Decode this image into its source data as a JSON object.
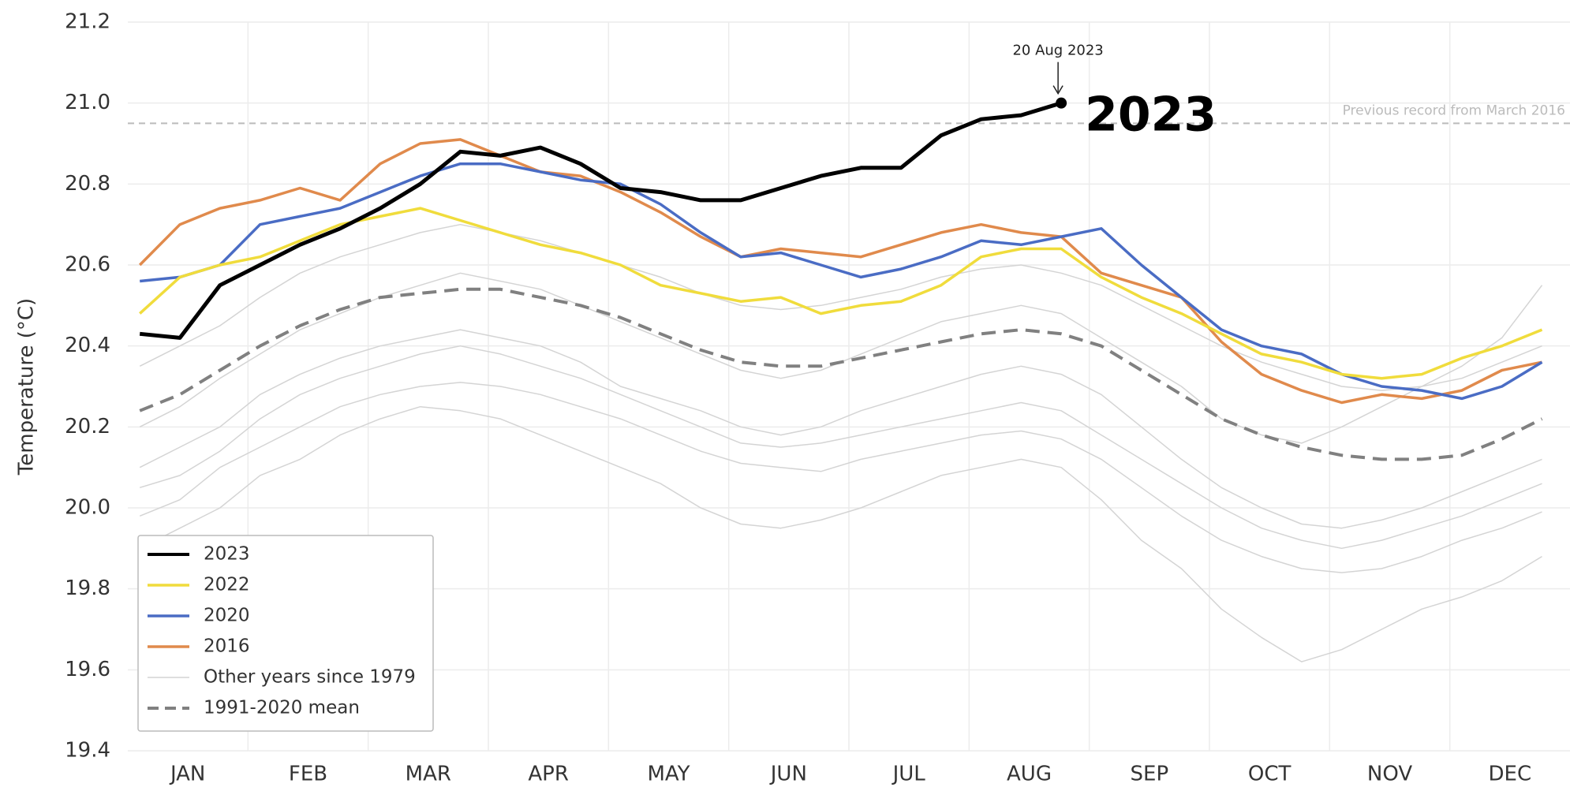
{
  "chart_data": {
    "type": "line",
    "y_label": "Temperature (°C)",
    "annotation": "20 Aug 2023",
    "record": {
      "value": 20.95,
      "label": "Previous record from March 2016"
    },
    "categories": [
      null,
      "JAN",
      null,
      null,
      "FEB",
      null,
      null,
      "MAR",
      null,
      null,
      "APR",
      null,
      null,
      "MAY",
      null,
      null,
      "JUN",
      null,
      null,
      "JUL",
      null,
      null,
      "AUG",
      null,
      null,
      "SEP",
      null,
      null,
      "OCT",
      null,
      null,
      "NOV",
      null,
      null,
      "DEC",
      null
    ],
    "ylim": [
      19.4,
      21.2
    ],
    "yticks": [
      19.4,
      19.6,
      19.8,
      {
        "value": 20,
        "label": "20.0"
      },
      20.2,
      20.4,
      20.6,
      20.8,
      {
        "value": 21,
        "label": "21.0"
      },
      21.2
    ],
    "grid": true,
    "legend": "lower left",
    "series": [
      {
        "name": "2023",
        "color": "#000000",
        "width": 5,
        "values": [
          20.43,
          20.42,
          20.55,
          20.6,
          20.65,
          20.69,
          20.74,
          20.8,
          20.88,
          20.87,
          20.89,
          20.85,
          20.79,
          20.78,
          20.76,
          20.76,
          20.79,
          20.82,
          20.84,
          20.84,
          20.92,
          20.96,
          20.97,
          21.0,
          null,
          null,
          null,
          null,
          null,
          null,
          null,
          null,
          null,
          null,
          null,
          null
        ]
      },
      {
        "name": "2022",
        "color": "#f0dc3c",
        "width": 3.5,
        "values": [
          20.48,
          20.57,
          20.6,
          20.62,
          20.66,
          20.7,
          20.72,
          20.74,
          20.71,
          20.68,
          20.65,
          20.63,
          20.6,
          20.55,
          20.53,
          20.51,
          20.52,
          20.48,
          20.5,
          20.51,
          20.55,
          20.62,
          20.64,
          20.64,
          20.57,
          20.52,
          20.48,
          20.43,
          20.38,
          20.36,
          20.33,
          20.32,
          20.33,
          20.37,
          20.4,
          20.44
        ]
      },
      {
        "name": "2020",
        "color": "#4a6cc4",
        "width": 3.5,
        "values": [
          20.56,
          20.57,
          20.6,
          20.7,
          20.72,
          20.74,
          20.78,
          20.82,
          20.85,
          20.85,
          20.83,
          20.81,
          20.8,
          20.75,
          20.68,
          20.62,
          20.63,
          20.6,
          20.57,
          20.59,
          20.62,
          20.66,
          20.65,
          20.67,
          20.69,
          20.6,
          20.52,
          20.44,
          20.4,
          20.38,
          20.33,
          20.3,
          20.29,
          20.27,
          20.3,
          20.36
        ]
      },
      {
        "name": "2016",
        "color": "#e08a4c",
        "width": 3.5,
        "values": [
          20.6,
          20.7,
          20.74,
          20.76,
          20.79,
          20.76,
          20.85,
          20.9,
          20.91,
          20.87,
          20.83,
          20.82,
          20.78,
          20.73,
          20.67,
          20.62,
          20.64,
          20.63,
          20.62,
          20.65,
          20.68,
          20.7,
          20.68,
          20.67,
          20.58,
          20.55,
          20.52,
          20.41,
          20.33,
          20.29,
          20.26,
          20.28,
          20.27,
          20.29,
          20.34,
          20.36
        ]
      },
      {
        "name": "Other years since 1979",
        "color": "#d4d4d4",
        "width": 1.5,
        "lines": [
          [
            19.98,
            20.02,
            20.1,
            20.15,
            20.2,
            20.25,
            20.28,
            20.3,
            20.31,
            20.3,
            20.28,
            20.25,
            20.22,
            20.18,
            20.14,
            20.11,
            20.1,
            20.09,
            20.12,
            20.14,
            20.16,
            20.18,
            20.19,
            20.17,
            20.12,
            20.05,
            19.98,
            19.92,
            19.88,
            19.85,
            19.84,
            19.85,
            19.88,
            19.92,
            19.95,
            19.99
          ],
          [
            20.35,
            20.4,
            20.45,
            20.52,
            20.58,
            20.62,
            20.65,
            20.68,
            20.7,
            20.68,
            20.66,
            20.63,
            20.6,
            20.57,
            20.53,
            20.5,
            20.49,
            20.5,
            20.52,
            20.54,
            20.57,
            20.59,
            20.6,
            20.58,
            20.55,
            20.5,
            20.45,
            20.4,
            20.36,
            20.33,
            20.3,
            20.29,
            20.3,
            20.32,
            20.36,
            20.4
          ],
          [
            20.1,
            20.15,
            20.2,
            20.28,
            20.33,
            20.37,
            20.4,
            20.42,
            20.44,
            20.42,
            20.4,
            20.36,
            20.3,
            20.27,
            20.24,
            20.2,
            20.18,
            20.2,
            20.24,
            20.27,
            20.3,
            20.33,
            20.35,
            20.33,
            20.28,
            20.2,
            20.12,
            20.05,
            20.0,
            19.96,
            19.95,
            19.97,
            20.0,
            20.04,
            20.08,
            20.12
          ],
          [
            19.9,
            19.95,
            20.0,
            20.08,
            20.12,
            20.18,
            20.22,
            20.25,
            20.24,
            20.22,
            20.18,
            20.14,
            20.1,
            20.06,
            20.0,
            19.96,
            19.95,
            19.97,
            20.0,
            20.04,
            20.08,
            20.1,
            20.12,
            20.1,
            20.02,
            19.92,
            19.85,
            19.75,
            19.68,
            19.62,
            19.65,
            19.7,
            19.75,
            19.78,
            19.82,
            19.88
          ],
          [
            20.2,
            20.25,
            20.32,
            20.38,
            20.44,
            20.48,
            20.52,
            20.55,
            20.58,
            20.56,
            20.54,
            20.5,
            20.46,
            20.42,
            20.38,
            20.34,
            20.32,
            20.34,
            20.38,
            20.42,
            20.46,
            20.48,
            20.5,
            20.48,
            20.42,
            20.36,
            20.3,
            20.22,
            20.18,
            20.16,
            20.2,
            20.25,
            20.3,
            20.35,
            20.42,
            20.55
          ],
          [
            20.05,
            20.08,
            20.14,
            20.22,
            20.28,
            20.32,
            20.35,
            20.38,
            20.4,
            20.38,
            20.35,
            20.32,
            20.28,
            20.24,
            20.2,
            20.16,
            20.15,
            20.16,
            20.18,
            20.2,
            20.22,
            20.24,
            20.26,
            20.24,
            20.18,
            20.12,
            20.06,
            20.0,
            19.95,
            19.92,
            19.9,
            19.92,
            19.95,
            19.98,
            20.02,
            20.06
          ]
        ]
      },
      {
        "name": "1991-2020 mean",
        "color": "#808080",
        "width": 4,
        "dashed": true,
        "values": [
          20.24,
          20.28,
          20.34,
          20.4,
          20.45,
          20.49,
          20.52,
          20.53,
          20.54,
          20.54,
          20.52,
          20.5,
          20.47,
          20.43,
          20.39,
          20.36,
          20.35,
          20.35,
          20.37,
          20.39,
          20.41,
          20.43,
          20.44,
          20.43,
          20.4,
          20.34,
          20.28,
          20.22,
          20.18,
          20.15,
          20.13,
          20.12,
          20.12,
          20.13,
          20.17,
          20.22
        ]
      }
    ]
  }
}
